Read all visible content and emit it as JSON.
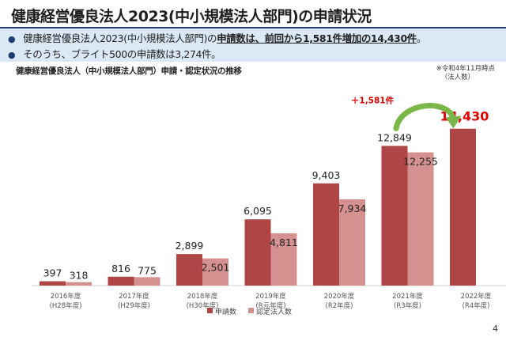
{
  "title": "健康経営優良法人2023(中小規模法人部門)の申請状況",
  "bullets": [
    {
      "pre": "健康経営優良法人2023(中小規模法人部門)の",
      "highlight": "申請数は、前回から1,581件増加の14,430件",
      "post": "。"
    },
    {
      "text": "そのうち、ブライト500の申請数は3,274件。"
    }
  ],
  "chart_heading": "健康経営優良法人（中小規模法人部門）申請・認定状況の推移",
  "as_of": [
    "※令和4年11月時点",
    "（法人数）"
  ],
  "page_number": "4",
  "colors": {
    "applications": "#b04545",
    "certified": "#d49190",
    "highlight_label": "#e00000",
    "arrow": "#7ab648",
    "summary_bg": "#dbe8f6"
  },
  "chart_data": {
    "type": "bar",
    "categories": [
      [
        "2016年度",
        "(H28年度)"
      ],
      [
        "2017年度",
        "(H29年度)"
      ],
      [
        "2018年度",
        "(H30年度)"
      ],
      [
        "2019年度",
        "(R元年度)"
      ],
      [
        "2020年度",
        "(R2年度)"
      ],
      [
        "2021年度",
        "(R3年度)"
      ],
      [
        "2022年度",
        "(R4年度)"
      ]
    ],
    "series": [
      {
        "name": "申請数",
        "values": [
          397,
          816,
          2899,
          6095,
          9403,
          12849,
          14430
        ],
        "labels": [
          "397",
          "816",
          "2,899",
          "6,095",
          "9,403",
          "12,849",
          "14,430"
        ]
      },
      {
        "name": "認定法人数",
        "values": [
          318,
          775,
          2501,
          4811,
          7934,
          12255,
          null
        ],
        "labels": [
          "318",
          "775",
          "2,501",
          "4,811",
          "7,934",
          "12,255",
          ""
        ]
      }
    ],
    "annotation": "＋1,581件",
    "ylim": [
      0,
      15500
    ],
    "legend": "bottom-center",
    "grid": false
  }
}
